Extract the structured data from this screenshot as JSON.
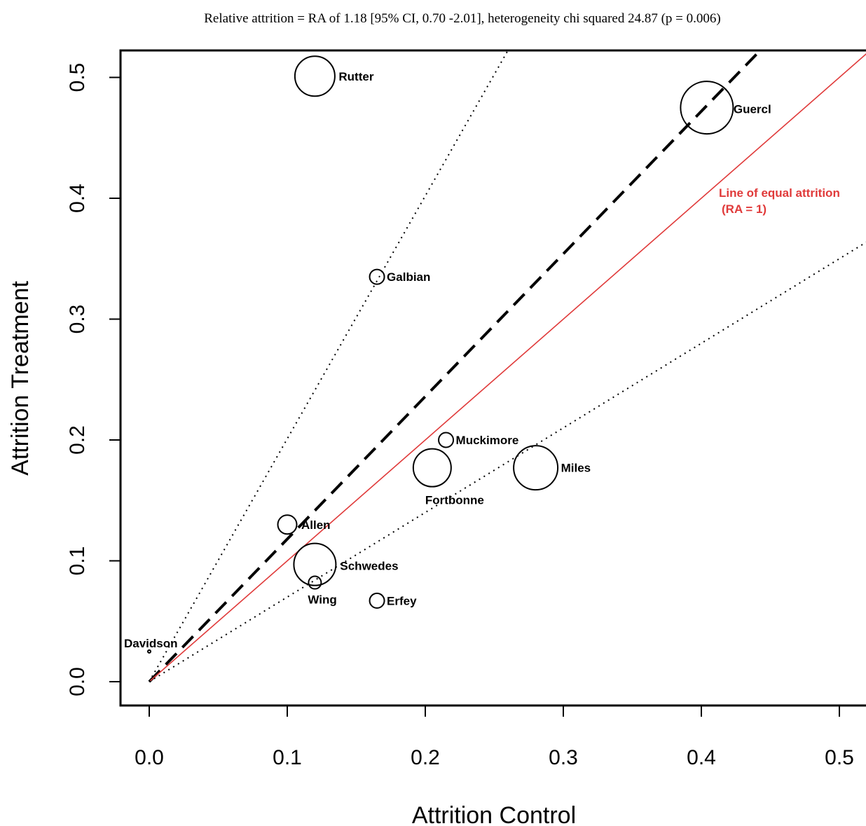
{
  "chart_data": {
    "type": "scatter",
    "title": "Relative attrition = RA of 1.18 [95% CI, 0.70 -2.01], heterogeneity chi squared 24.87 (p =  0.006)",
    "xlabel": "Attrition Control",
    "ylabel": "Attrition Treatment",
    "xlim": [
      0.0,
      0.52
    ],
    "ylim": [
      0.0,
      0.52
    ],
    "xticks": [
      "0.0",
      "0.1",
      "0.2",
      "0.3",
      "0.4",
      "0.5"
    ],
    "yticks": [
      "0.0",
      "0.1",
      "0.2",
      "0.3",
      "0.4",
      "0.5"
    ],
    "grid": false,
    "points": [
      {
        "label": "Rutter",
        "x": 0.12,
        "y": 0.501,
        "size": 1.9
      },
      {
        "label": "Guercl",
        "x": 0.404,
        "y": 0.475,
        "size": 2.5
      },
      {
        "label": "Galbian",
        "x": 0.165,
        "y": 0.335,
        "size": 0.7
      },
      {
        "label": "Muckimore",
        "x": 0.215,
        "y": 0.2,
        "size": 0.7
      },
      {
        "label": "Fortbonne",
        "x": 0.205,
        "y": 0.177,
        "size": 1.8
      },
      {
        "label": "Miles",
        "x": 0.28,
        "y": 0.177,
        "size": 2.1
      },
      {
        "label": "Allen",
        "x": 0.1,
        "y": 0.13,
        "size": 0.9
      },
      {
        "label": "Schwedes",
        "x": 0.12,
        "y": 0.097,
        "size": 2.0
      },
      {
        "label": "Wing",
        "x": 0.12,
        "y": 0.082,
        "size": 0.6
      },
      {
        "label": "Erfey",
        "x": 0.165,
        "y": 0.067,
        "size": 0.7
      },
      {
        "label": "Davidson",
        "x": 0.0,
        "y": 0.025,
        "size": 0.12
      }
    ],
    "lines": [
      {
        "name": "pooled",
        "slope": 1.18,
        "style": "dashed",
        "color": "#000000"
      },
      {
        "name": "Line of equal attrition",
        "slope": 1.0,
        "style": "solid",
        "color": "#e03a3a"
      },
      {
        "name": "ci-upper",
        "slope": 2.01,
        "style": "dotted",
        "color": "#000000"
      },
      {
        "name": "ci-lower",
        "slope": 0.7,
        "style": "dotted",
        "color": "#000000"
      }
    ],
    "annotation": {
      "line1": "Line of equal attrition",
      "line2": "(RA = 1)",
      "color": "#e03a3a"
    }
  }
}
